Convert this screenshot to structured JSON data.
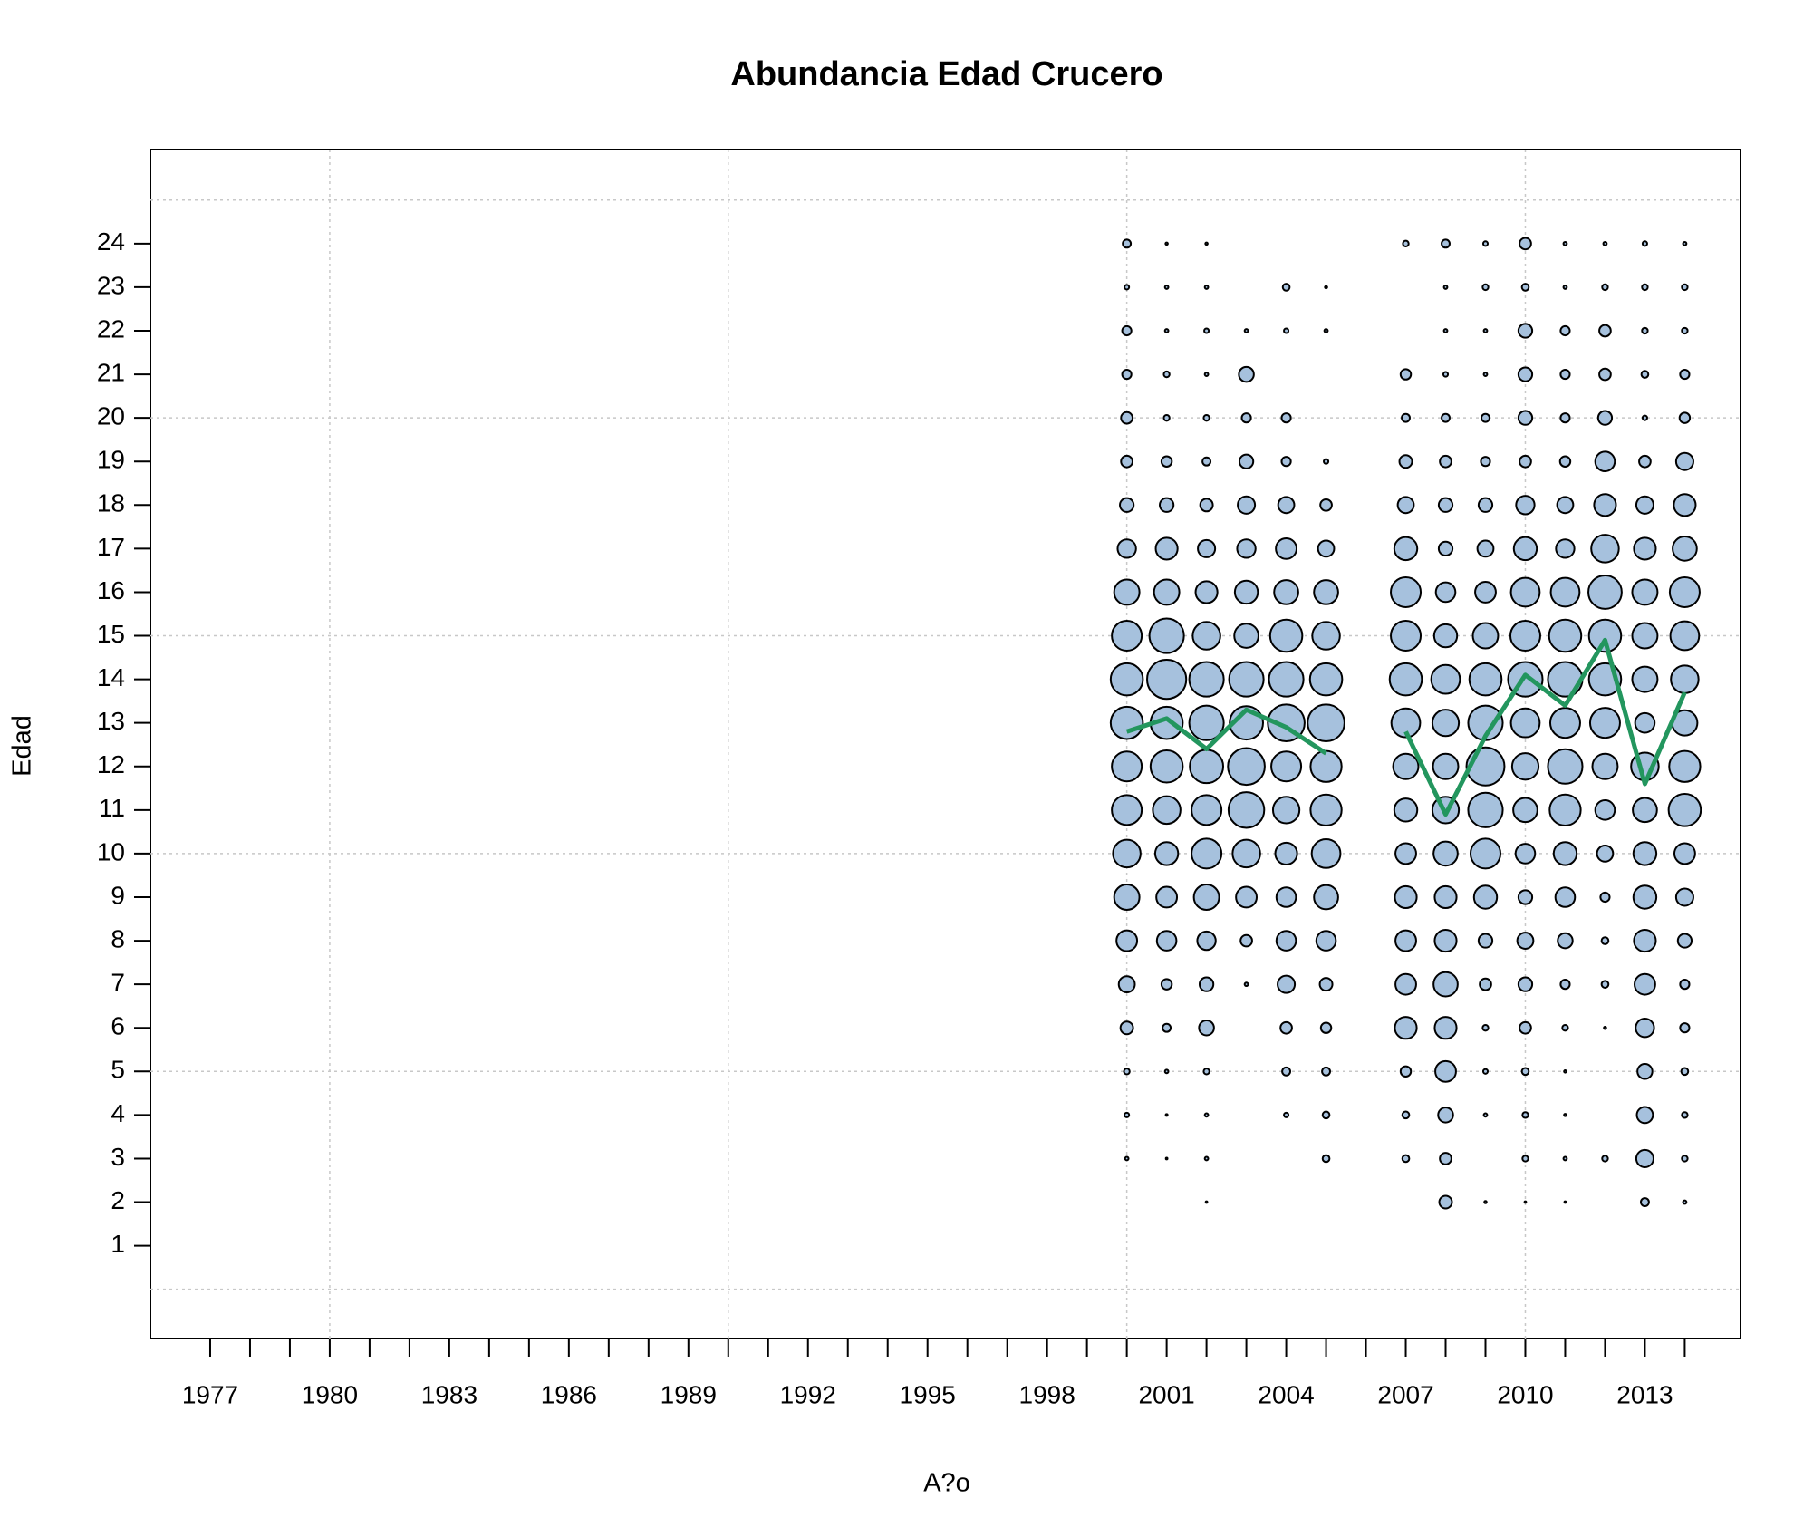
{
  "chart_data": {
    "type": "bubble",
    "title": "Abundancia Edad Crucero",
    "xlabel": "A?o",
    "ylabel": "Edad",
    "xlim": [
      1975.5,
      2015.4
    ],
    "ylim": [
      -1.13,
      26.16
    ],
    "xticks": [
      1977,
      1980,
      1983,
      1986,
      1989,
      1992,
      1995,
      1998,
      2001,
      2004,
      2007,
      2010,
      2013
    ],
    "xminorticks": [
      1978,
      1979,
      1981,
      1982,
      1984,
      1985,
      1987,
      1988,
      1990,
      1991,
      1993,
      1994,
      1996,
      1997,
      1999,
      2000,
      2002,
      2003,
      2005,
      2006,
      2008,
      2009,
      2011,
      2012,
      2014
    ],
    "yticks": [
      1,
      2,
      3,
      4,
      5,
      6,
      7,
      8,
      9,
      10,
      11,
      12,
      13,
      14,
      15,
      16,
      17,
      18,
      19,
      20,
      21,
      22,
      23,
      24
    ],
    "xgrid": [
      1980,
      1990,
      2000,
      2010
    ],
    "ygrid": [
      0,
      5,
      10,
      15,
      20,
      25
    ],
    "grid": true,
    "bubble_color": "#a6c1dd",
    "x": [
      2000,
      2001,
      2002,
      2003,
      2004,
      2005,
      2006,
      2007,
      2008,
      2009,
      2010,
      2011,
      2012,
      2013,
      2014
    ],
    "ages": [
      1,
      2,
      3,
      4,
      5,
      6,
      7,
      8,
      9,
      10,
      11,
      12,
      13,
      14,
      15,
      16,
      17,
      18,
      19,
      20,
      21,
      22,
      23,
      24
    ],
    "sizes": [
      [
        null,
        null,
        1.5,
        2,
        2.5,
        5.5,
        7,
        9,
        11,
        12,
        13,
        13,
        14,
        14,
        13,
        11,
        8,
        6,
        5,
        5,
        4,
        4,
        2,
        3.5
      ],
      [
        null,
        null,
        0.7,
        0.8,
        1.5,
        3.5,
        4.5,
        8.5,
        9,
        10,
        12,
        14,
        14,
        17,
        15,
        11,
        9.5,
        6,
        4.5,
        2.5,
        2.5,
        1.5,
        1.5,
        1
      ],
      [
        null,
        0.7,
        1.5,
        1.5,
        2.5,
        6.5,
        6,
        8,
        11,
        13,
        13,
        14.5,
        15,
        15,
        12,
        9.5,
        7.5,
        5.5,
        3.5,
        2.5,
        1.5,
        2,
        1.5,
        1
      ],
      [
        null,
        null,
        null,
        null,
        null,
        null,
        1.5,
        5,
        9,
        12,
        15.5,
        16,
        14.5,
        15,
        10.5,
        10,
        8,
        7.5,
        6,
        4,
        6.5,
        1.5,
        null,
        null
      ],
      [
        null,
        null,
        null,
        2,
        3.5,
        5,
        7.5,
        8.5,
        8.5,
        9.5,
        11.5,
        13,
        16,
        15,
        14,
        10.5,
        9,
        7,
        4,
        4,
        null,
        2,
        3,
        null
      ],
      [
        null,
        null,
        3,
        3,
        3.5,
        4.5,
        5.5,
        8.5,
        10.5,
        12.5,
        13.5,
        13.5,
        16,
        14,
        12,
        10.5,
        7,
        5,
        2,
        null,
        null,
        1.5,
        1,
        null
      ],
      [
        null,
        null,
        null,
        null,
        null,
        null,
        null,
        null,
        null,
        null,
        null,
        null,
        null,
        null,
        null,
        null,
        null,
        null,
        null,
        null,
        null,
        null,
        null,
        null
      ],
      [
        null,
        null,
        3,
        3,
        4.5,
        9.5,
        9,
        9,
        9.5,
        9,
        10,
        11,
        12.5,
        14,
        13,
        13,
        10,
        7,
        5.5,
        3.5,
        4.5,
        null,
        null,
        2.5
      ],
      [
        null,
        5.5,
        5,
        6.5,
        9,
        9.5,
        10.5,
        9.5,
        9.5,
        10.5,
        11.5,
        11,
        11.5,
        12.5,
        10,
        8.5,
        6,
        6,
        5,
        3.5,
        2,
        1.5,
        1.5,
        3.5
      ],
      [
        null,
        1,
        null,
        1.5,
        2,
        2.5,
        5,
        6,
        10,
        13,
        15,
        16.5,
        15,
        14,
        11,
        9,
        7,
        6,
        4,
        3.5,
        1.5,
        1.5,
        2.5,
        2
      ],
      [
        null,
        0.7,
        2.5,
        2.5,
        3,
        5,
        6,
        7,
        6,
        8.5,
        10.5,
        11.5,
        12.5,
        15,
        13,
        12.5,
        10,
        8,
        5,
        6,
        6,
        6,
        3,
        5
      ],
      [
        null,
        0.7,
        1.5,
        1,
        1,
        2.5,
        4,
        6.5,
        8.5,
        10,
        13.5,
        15,
        13,
        15,
        14,
        12.5,
        8,
        7,
        4.5,
        4,
        4,
        4,
        1.5,
        1.5
      ],
      [
        null,
        null,
        2.5,
        null,
        null,
        1,
        3,
        3,
        4,
        7,
        8.5,
        11,
        13,
        14,
        14,
        14.5,
        12,
        9.5,
        8.5,
        6,
        5,
        5,
        2.5,
        1.5
      ],
      [
        null,
        3.5,
        7.5,
        7,
        6.5,
        8,
        9,
        9.5,
        10,
        10,
        10.5,
        12,
        8.5,
        11,
        11,
        11,
        9.5,
        7.5,
        5,
        2,
        3,
        2.5,
        2.5,
        2
      ],
      [
        null,
        1.5,
        2.5,
        2.5,
        3,
        4,
        4,
        6,
        7.5,
        9,
        14,
        13.5,
        11,
        12,
        12.5,
        13,
        10.5,
        9.5,
        7.5,
        4.5,
        4,
        2.5,
        2.5,
        1.5
      ]
    ],
    "mean_line": {
      "color": "#23965e",
      "values": [
        12.8,
        13.1,
        12.4,
        13.3,
        12.9,
        12.3,
        null,
        12.8,
        10.9,
        12.7,
        14.1,
        13.4,
        14.9,
        11.6,
        13.7
      ]
    }
  }
}
